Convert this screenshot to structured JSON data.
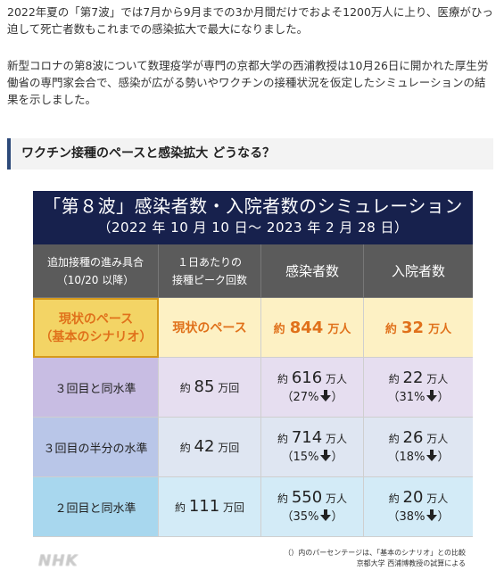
{
  "article": {
    "paragraph1": "2022年夏の「第7波」では7月から9月までの3か月間だけでおよそ1200万人に上り、医療がひっ迫して死亡者数もこれまでの感染拡大で最大になりました。",
    "paragraph2": "新型コロナの第8波について数理疫学が専門の京都大学の西浦教授は10月26日に開かれた厚生労働省の専門家会合で、感染が広がる勢いやワクチンの接種状況を仮定したシミュレーションの結果を示しました。",
    "section_heading": "ワクチン接種のペースと感染拡大 どうなる？"
  },
  "figure": {
    "title": "「第８波」感染者数・入院者数のシミュレーション",
    "subtitle": "（2022 年 10 月 10 日～ 2023 年 2 月 28 日）",
    "headers": {
      "col1_line1": "追加接種の進み具合",
      "col1_line2": "（10/20 以降）",
      "col2_line1": "１日あたりの",
      "col2_line2": "接種ピーク回数",
      "col3": "感染者数",
      "col4": "入院者数"
    },
    "rows": [
      {
        "scenario_line1": "現状のペース",
        "scenario_line2": "（基本のシナリオ）",
        "peak": "現状のペース",
        "inf_prefix": "約",
        "inf_value": "844",
        "inf_unit": "万人",
        "hosp_prefix": "約",
        "hosp_value": "32",
        "hosp_unit": "万人"
      },
      {
        "scenario": "３回目と同水準",
        "peak_prefix": "約",
        "peak_value": "85",
        "peak_unit": "万回",
        "inf_prefix": "約",
        "inf_value": "616",
        "inf_unit": "万人",
        "inf_pct": "（27%",
        "hosp_prefix": "約",
        "hosp_value": "22",
        "hosp_unit": "万人",
        "hosp_pct": "（31%"
      },
      {
        "scenario": "３回目の半分の水準",
        "peak_prefix": "約",
        "peak_value": "42",
        "peak_unit": "万回",
        "inf_prefix": "約",
        "inf_value": "714",
        "inf_unit": "万人",
        "inf_pct": "（15%",
        "hosp_prefix": "約",
        "hosp_value": "26",
        "hosp_unit": "万人",
        "hosp_pct": "（18%"
      },
      {
        "scenario": "２回目と同水準",
        "peak_prefix": "約",
        "peak_value": "111",
        "peak_unit": "万回",
        "inf_prefix": "約",
        "inf_value": "550",
        "inf_unit": "万人",
        "inf_pct": "（35%",
        "hosp_prefix": "約",
        "hosp_value": "20",
        "hosp_unit": "万人",
        "hosp_pct": "（38%"
      }
    ],
    "pct_close": "）",
    "note1": "（）内のパーセンテージは、「基本のシナリオ」との比較",
    "note2": "京都大学 西浦博教授の試算による",
    "logo": "NHK"
  },
  "icons": {
    "down_arrow": "down-arrow-icon"
  },
  "colors": {
    "title_bg": "#17214d",
    "base_row": "#fdf1c4",
    "base_accent": "#e0711b",
    "header_bg": "#5b5b5b"
  }
}
